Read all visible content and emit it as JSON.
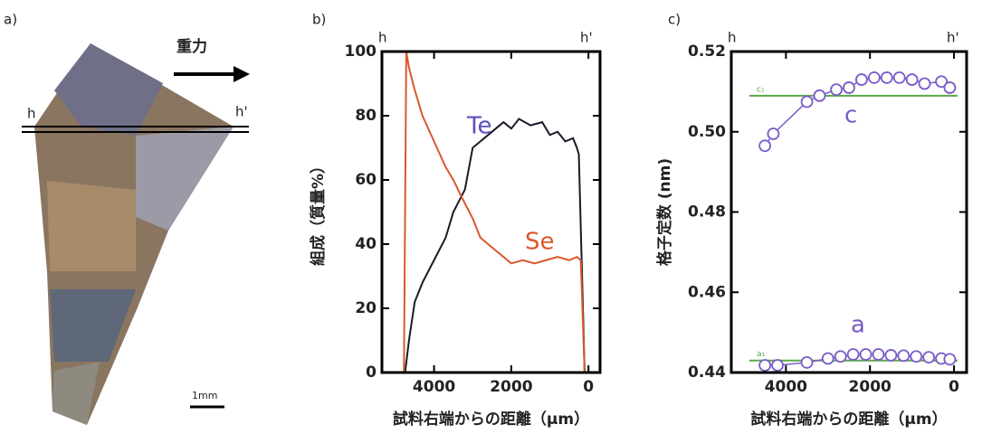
{
  "panel_a": {
    "label": "a)",
    "arrow_label": "重力",
    "left_marker": "h",
    "right_marker": "h'",
    "scale_bar": "1mm"
  },
  "chart_data": [
    {
      "type": "line",
      "panel_label": "b)",
      "xlabel": "試料右端からの距離（μm）",
      "ylabel": "組成（質量%）",
      "top_left_label": "h",
      "top_right_label": "h'",
      "xlim": [
        5350,
        -300
      ],
      "xticks": [
        4000,
        2000,
        0
      ],
      "ylim": [
        0,
        100
      ],
      "yticks": [
        0,
        20,
        40,
        60,
        80,
        100
      ],
      "series": [
        {
          "name": "Te",
          "color": "#1a1a2a",
          "label_color": "#5a4fc0",
          "x": [
            4750,
            4650,
            4500,
            4300,
            4000,
            3700,
            3500,
            3200,
            3000,
            2800,
            2600,
            2400,
            2200,
            2000,
            1800,
            1500,
            1200,
            1000,
            800,
            600,
            400,
            300,
            250,
            100
          ],
          "values": [
            0,
            10,
            22,
            28,
            35,
            42,
            50,
            57,
            70,
            72,
            74,
            76,
            78,
            76,
            79,
            77,
            78,
            74,
            75,
            72,
            73,
            70,
            68,
            0
          ]
        },
        {
          "name": "Se",
          "color": "#d9582b",
          "label_color": "#d9582b",
          "x": [
            4780,
            4720,
            4650,
            4500,
            4300,
            4000,
            3700,
            3500,
            3300,
            3000,
            2800,
            2600,
            2400,
            2200,
            2000,
            1700,
            1400,
            1100,
            800,
            500,
            300,
            200,
            100
          ],
          "values": [
            0,
            100,
            95,
            88,
            80,
            72,
            64,
            60,
            55,
            48,
            42,
            40,
            38,
            36,
            34,
            35,
            34,
            35,
            36,
            35,
            36,
            35,
            0
          ]
        }
      ]
    },
    {
      "type": "scatter",
      "panel_label": "c)",
      "xlabel": "試料右端からの距離（μm）",
      "ylabel": "格子定数 (nm)",
      "top_left_label": "h",
      "top_right_label": "h'",
      "xlim": [
        5300,
        -300
      ],
      "xticks": [
        4000,
        2000,
        0
      ],
      "ylim": [
        0.44,
        0.52
      ],
      "yticks": [
        {
          "value": 0.44,
          "label": "0.44"
        },
        {
          "value": 0.46,
          "label": "0.46"
        },
        {
          "value": 0.48,
          "label": "0.48"
        },
        {
          "value": 0.5,
          "label": "0.50"
        },
        {
          "value": 0.52,
          "label": "0.52"
        }
      ],
      "reference_lines": [
        {
          "label": "c₁",
          "value": 0.509,
          "color": "#5aa84a"
        },
        {
          "label": "a₁",
          "value": 0.443,
          "color": "#5aa84a"
        }
      ],
      "series": [
        {
          "name": "c",
          "color": "#7a5cc8",
          "x": [
            4500,
            4300,
            3500,
            3200,
            2800,
            2500,
            2200,
            1900,
            1600,
            1300,
            1000,
            700,
            300,
            100
          ],
          "values": [
            0.4965,
            0.4995,
            0.5075,
            0.509,
            0.5105,
            0.511,
            0.513,
            0.5135,
            0.5135,
            0.5135,
            0.513,
            0.512,
            0.5125,
            0.511
          ]
        },
        {
          "name": "a",
          "color": "#7a5cc8",
          "x": [
            4500,
            4200,
            3500,
            3000,
            2700,
            2400,
            2100,
            1800,
            1500,
            1200,
            900,
            600,
            300,
            100
          ],
          "values": [
            0.4418,
            0.4418,
            0.4425,
            0.4435,
            0.444,
            0.4445,
            0.4445,
            0.4445,
            0.4443,
            0.4442,
            0.444,
            0.4438,
            0.4435,
            0.4433
          ]
        }
      ]
    }
  ]
}
